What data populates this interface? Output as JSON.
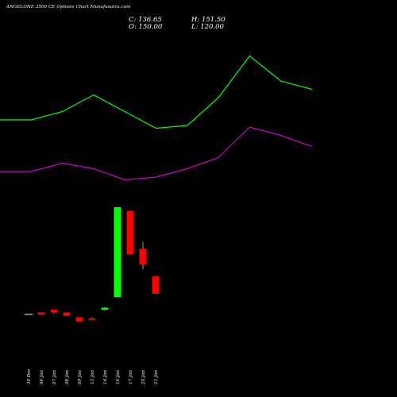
{
  "chart_data": {
    "type": "candlestick",
    "title": "ANGELONE 2500 CE Options Chart Munafasutra.com",
    "ohlc_readout": {
      "close_label": "C: 136.65",
      "open_label": "O: 150.00",
      "high_label": "H: 151.50",
      "low_label": "L: 120.00"
    },
    "categories": [
      "30 Dec",
      "06 Jan",
      "07 Jan",
      "08 Jan",
      "09 Jan",
      "13 Jan",
      "14 Jan",
      "16 Jan",
      "17 Jan",
      "20 Jan",
      "21 Jan"
    ],
    "candles": [
      {
        "open": 0.05,
        "high": 0.05,
        "low": 0.05,
        "close": 0.05
      },
      {
        "open": 3.0,
        "high": 3.0,
        "low": -0.5,
        "close": -0.5
      },
      {
        "open": 6.8,
        "high": 6.8,
        "low": 1.3,
        "close": 3.2
      },
      {
        "open": 3.0,
        "high": 3.0,
        "low": -2.0,
        "close": -2.0
      },
      {
        "open": -4.0,
        "high": -4.0,
        "low": -10.0,
        "close": -10.0
      },
      {
        "open": -5.7,
        "high": -4.0,
        "low": -7.7,
        "close": -7.7
      },
      {
        "open": 6.7,
        "high": 10.7,
        "low": 5.3,
        "close": 9.8
      },
      {
        "open": 25.0,
        "high": 155.0,
        "low": 25.0,
        "close": 155.0
      },
      {
        "open": 150.0,
        "high": 150.0,
        "low": 86.7,
        "close": 86.7
      },
      {
        "open": 95.0,
        "high": 105.0,
        "low": 65.0,
        "close": 72.5
      },
      {
        "open": 55.0,
        "high": 55.0,
        "low": 30.0,
        "close": 30.0
      }
    ],
    "series": [
      {
        "color": "#00ff00",
        "values": [
          0,
          0,
          0.3,
          0.9,
          0.3,
          -0.3,
          -0.2,
          0.8,
          2.3,
          1.4,
          1.1
        ]
      },
      {
        "color": "#cc00cc",
        "values": [
          0,
          0,
          0.3,
          0.1,
          -0.3,
          -0.2,
          0.1,
          0.5,
          1.6,
          1.3,
          0.9
        ]
      }
    ],
    "colors": {
      "up": "#00ff00",
      "down": "#ff0000",
      "background": "#000000",
      "text": "#ffffff"
    }
  }
}
